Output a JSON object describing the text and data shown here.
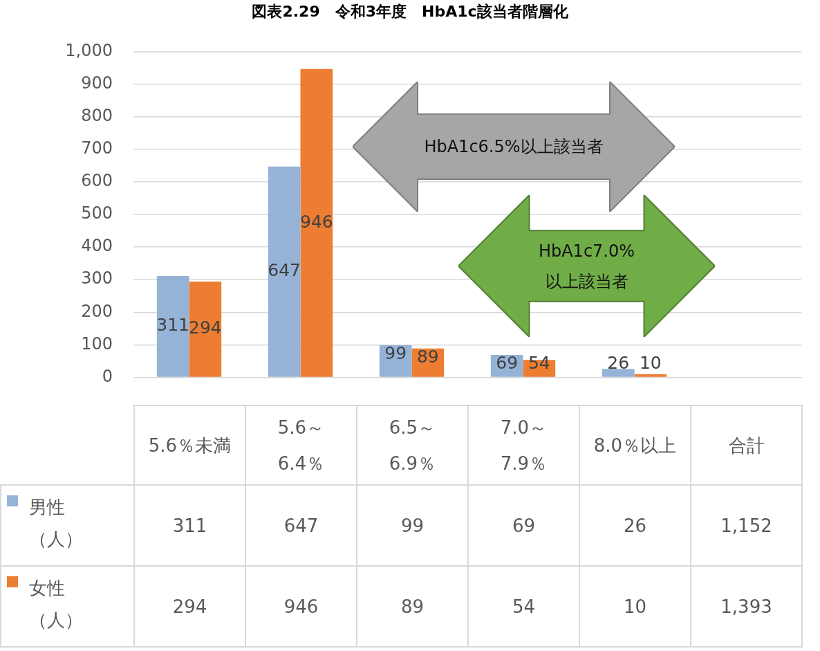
{
  "chart_data": {
    "type": "bar",
    "title": "図表2.29　令和3年度　HbA1c該当者階層化",
    "categories": [
      "5.6％未満",
      "5.6～6.4％",
      "6.5～6.9％",
      "7.0～7.9％",
      "8.0％以上",
      "合計"
    ],
    "series": [
      {
        "name": "男性（人）",
        "color": "#95b3d7",
        "values": [
          311,
          647,
          99,
          69,
          26,
          null
        ],
        "value_labels": [
          "311",
          "647",
          "99",
          "69",
          "26",
          "1,152"
        ]
      },
      {
        "name": "女性（人）",
        "color": "#ed7d31",
        "values": [
          294,
          946,
          89,
          54,
          10,
          null
        ],
        "value_labels": [
          "294",
          "946",
          "89",
          "54",
          "10",
          "1,393"
        ]
      }
    ],
    "ylim": [
      0,
      1000
    ],
    "yticks": [
      0,
      100,
      200,
      300,
      400,
      500,
      600,
      700,
      800,
      900,
      {
        "value": 1000,
        "label": "1,000"
      }
    ],
    "grid": "y",
    "legend": "bottom",
    "annotations": [
      "HbA1c6.5%以上該当者",
      "HbA1c7.0%以上該当者"
    ]
  }
}
